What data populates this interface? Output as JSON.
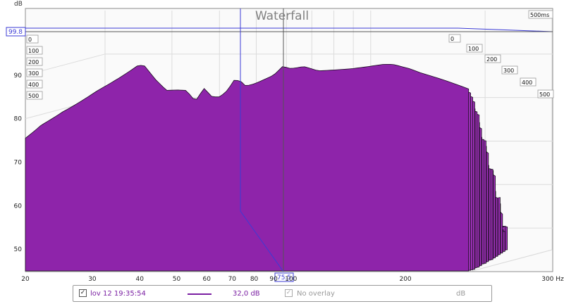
{
  "chart_data": {
    "type": "area",
    "title": "Waterfall",
    "ylabel": "dB",
    "xunit": "Hz",
    "x_scale": "log",
    "xlim": [
      20,
      300
    ],
    "ylim": [
      45,
      100
    ],
    "x_tick_labels": [
      "20",
      "30",
      "40",
      "50",
      "60",
      "70",
      "80",
      "90",
      "100",
      "200",
      "300 Hz"
    ],
    "y_tick_labels": [
      "50",
      "60",
      "70",
      "80",
      "90"
    ],
    "time_axis_max_label": "500ms",
    "time_labels_left": [
      "0",
      "100",
      "200",
      "300",
      "400",
      "500"
    ],
    "time_labels_right": [
      "0",
      "100",
      "200",
      "300",
      "400",
      "500"
    ],
    "slice_count": 40,
    "front_slice": {
      "x": [
        20,
        22,
        25,
        28,
        31,
        34,
        37,
        39.5,
        41,
        44,
        47,
        50,
        53,
        56,
        59,
        62,
        65,
        68,
        71,
        74,
        76,
        80,
        85,
        90,
        95,
        100,
        108,
        118,
        130,
        145,
        160,
        175,
        185,
        195,
        205,
        220,
        240,
        260,
        280,
        300
      ],
      "y": [
        75.5,
        78.5,
        81.5,
        84,
        86.5,
        88.5,
        90.5,
        92.2,
        92.3,
        89,
        86.5,
        86.6,
        86.5,
        84,
        87,
        85,
        85,
        86.5,
        89,
        88.5,
        87.5,
        88,
        89,
        90,
        92,
        91.5,
        92,
        91,
        91.2,
        91.5,
        92,
        92.5,
        92.5,
        92,
        91.5,
        90.5,
        89.5,
        88.5,
        87.5,
        86.5
      ]
    },
    "cursor_readouts": {
      "level": "99.8",
      "frequency": "75.5"
    },
    "series": [
      {
        "name": "lov 12 19:35:54",
        "color": "#8e24aa"
      }
    ],
    "legend": {
      "series_value": "32,0 dB",
      "overlay_label": "No overlay",
      "overlay_unit": "dB"
    }
  }
}
